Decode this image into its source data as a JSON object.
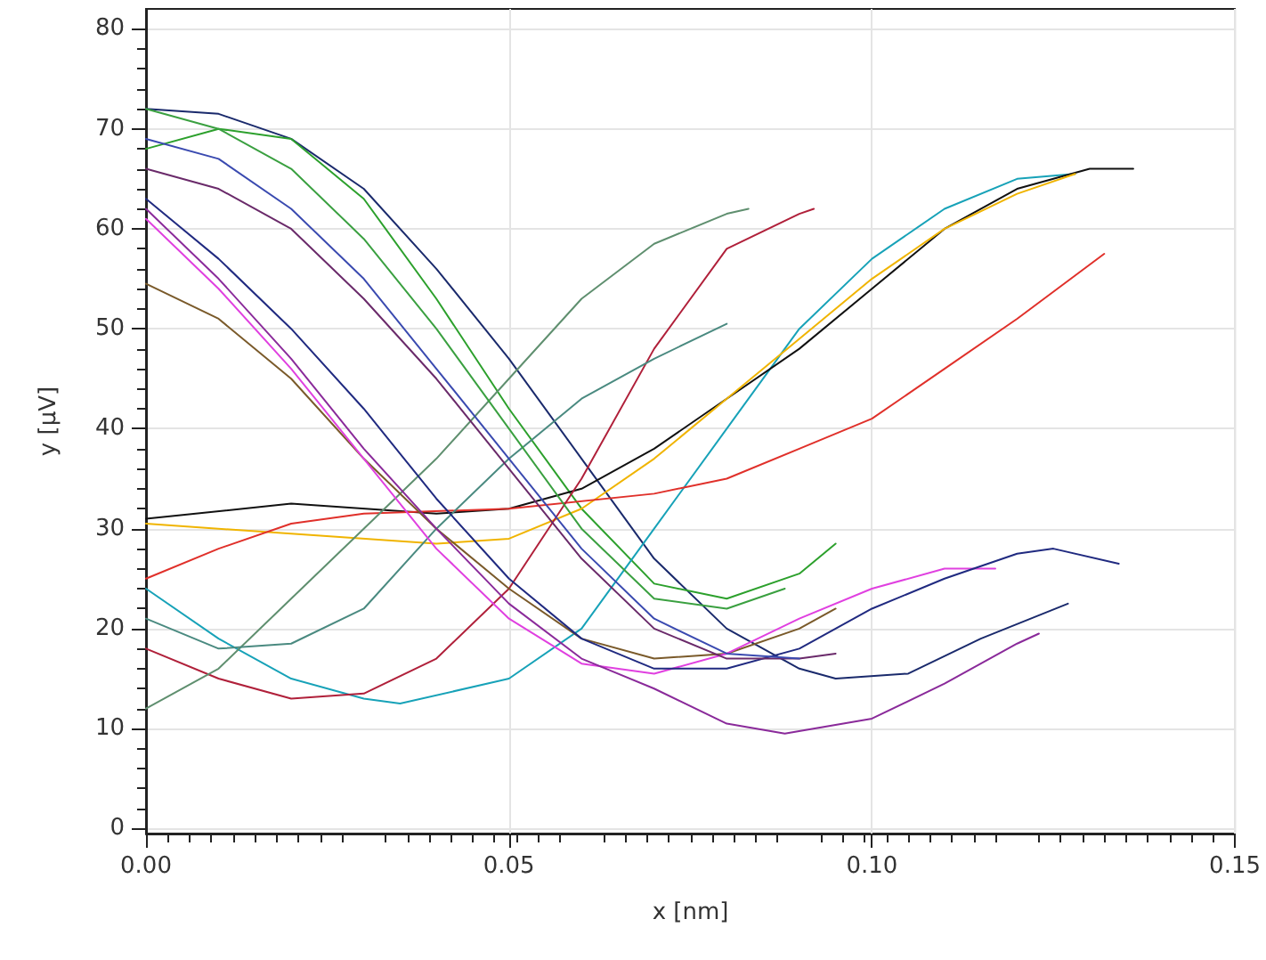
{
  "chart_data": {
    "type": "line",
    "xlabel": "x [nm]",
    "ylabel": "y [µV]",
    "xlim": [
      0,
      0.15
    ],
    "ylim": [
      -0.5,
      82
    ],
    "xticks": [
      {
        "value": 0,
        "label": "0.00"
      },
      {
        "value": 0.05,
        "label": "0.05"
      },
      {
        "value": 0.1,
        "label": "0.10"
      },
      {
        "value": 0.15,
        "label": "0.15"
      }
    ],
    "yticks": [
      0,
      10,
      20,
      30,
      40,
      50,
      60,
      70,
      80
    ],
    "grid": true,
    "marker": "none",
    "line_style": "solid",
    "series": [
      {
        "color": "#1a2a6c",
        "x": [
          0,
          0.01,
          0.02,
          0.03,
          0.04,
          0.05,
          0.06,
          0.07,
          0.08,
          0.09,
          0.095,
          0.105,
          0.115,
          0.127
        ],
        "values": [
          72,
          71.5,
          69,
          64,
          56,
          47,
          37,
          27,
          20,
          16,
          15,
          15.5,
          19,
          22.5
        ]
      },
      {
        "color": "#2ca02c",
        "x": [
          0,
          0.01,
          0.02,
          0.03,
          0.04,
          0.05,
          0.06,
          0.07,
          0.08,
          0.09,
          0.095
        ],
        "values": [
          68,
          70,
          69,
          63,
          53,
          42,
          32,
          24.5,
          23,
          25.5,
          28.5
        ]
      },
      {
        "color": "#17a2b8",
        "x": [
          0,
          0.01,
          0.02,
          0.03,
          0.035,
          0.05,
          0.06,
          0.07,
          0.08,
          0.09,
          0.1,
          0.11,
          0.12,
          0.128
        ],
        "values": [
          24,
          19,
          15,
          13,
          12.5,
          15,
          20,
          30,
          40,
          50,
          57,
          62,
          65,
          65.5
        ]
      },
      {
        "color": "#111111",
        "x": [
          0,
          0.02,
          0.04,
          0.05,
          0.06,
          0.07,
          0.08,
          0.09,
          0.1,
          0.11,
          0.12,
          0.13,
          0.136
        ],
        "values": [
          31,
          32.5,
          31.5,
          32,
          34,
          38,
          43,
          48,
          54,
          60,
          64,
          66,
          66
        ]
      },
      {
        "color": "#f0b400",
        "x": [
          0,
          0.02,
          0.04,
          0.05,
          0.06,
          0.07,
          0.08,
          0.09,
          0.1,
          0.11,
          0.12,
          0.128
        ],
        "values": [
          30.5,
          29.5,
          28.5,
          29,
          32,
          37,
          43,
          49,
          55,
          60,
          63.5,
          65.5
        ]
      },
      {
        "color": "#e0302a",
        "x": [
          0,
          0.01,
          0.02,
          0.03,
          0.05,
          0.07,
          0.08,
          0.09,
          0.1,
          0.11,
          0.12,
          0.132
        ],
        "values": [
          25,
          28,
          30.5,
          31.5,
          32,
          33.5,
          35,
          38,
          41,
          46,
          51,
          57.5
        ]
      },
      {
        "color": "#b0203a",
        "x": [
          0,
          0.01,
          0.02,
          0.03,
          0.04,
          0.05,
          0.06,
          0.07,
          0.08,
          0.09,
          0.092
        ],
        "values": [
          18,
          15,
          13,
          13.5,
          17,
          24,
          35,
          48,
          58,
          61.5,
          62
        ]
      },
      {
        "color": "#5f8f6f",
        "x": [
          0,
          0.01,
          0.02,
          0.03,
          0.04,
          0.05,
          0.06,
          0.07,
          0.08,
          0.083
        ],
        "values": [
          12,
          16,
          23,
          30,
          37,
          45,
          53,
          58.5,
          61.5,
          62
        ]
      },
      {
        "color": "#4a8a80",
        "x": [
          0,
          0.01,
          0.02,
          0.03,
          0.04,
          0.05,
          0.06,
          0.07,
          0.08
        ],
        "values": [
          21,
          18,
          18.5,
          22,
          30,
          37,
          43,
          47,
          50.5
        ]
      },
      {
        "color": "#7a5a2a",
        "x": [
          0,
          0.01,
          0.02,
          0.03,
          0.04,
          0.05,
          0.06,
          0.07,
          0.08,
          0.09,
          0.095
        ],
        "values": [
          54.5,
          51,
          45,
          37,
          30,
          24,
          19,
          17,
          17.5,
          20,
          22
        ]
      },
      {
        "color": "#e040e0",
        "x": [
          0,
          0.01,
          0.02,
          0.03,
          0.04,
          0.05,
          0.06,
          0.07,
          0.08,
          0.09,
          0.1,
          0.11,
          0.117
        ],
        "values": [
          61,
          54,
          46,
          37,
          28,
          21,
          16.5,
          15.5,
          17.5,
          21,
          24,
          26,
          26
        ]
      },
      {
        "color": "#8a2a9a",
        "x": [
          0,
          0.01,
          0.02,
          0.03,
          0.04,
          0.05,
          0.06,
          0.07,
          0.08,
          0.088,
          0.1,
          0.11,
          0.12,
          0.123
        ],
        "values": [
          62,
          55,
          47,
          38,
          30,
          22.5,
          17,
          14,
          10.5,
          9.5,
          11,
          14.5,
          18.5,
          19.5
        ]
      },
      {
        "color": "#202a80",
        "x": [
          0,
          0.01,
          0.02,
          0.03,
          0.04,
          0.05,
          0.06,
          0.07,
          0.08,
          0.09,
          0.1,
          0.11,
          0.12,
          0.125,
          0.134
        ],
        "values": [
          63,
          57,
          50,
          42,
          33,
          25,
          19,
          16,
          16,
          18,
          22,
          25,
          27.5,
          28,
          26.5
        ]
      },
      {
        "color": "#6a2a6a",
        "x": [
          0,
          0.01,
          0.02,
          0.03,
          0.04,
          0.05,
          0.06,
          0.07,
          0.08,
          0.09,
          0.095
        ],
        "values": [
          66,
          64,
          60,
          53,
          45,
          36,
          27,
          20,
          17,
          17,
          17.5
        ]
      },
      {
        "color": "#3a4ab0",
        "x": [
          0,
          0.01,
          0.02,
          0.03,
          0.04,
          0.05,
          0.06,
          0.07,
          0.08,
          0.09
        ],
        "values": [
          69,
          67,
          62,
          55,
          46,
          37,
          28,
          21,
          17.5,
          17
        ]
      },
      {
        "color": "#3aa040",
        "x": [
          0,
          0.01,
          0.02,
          0.03,
          0.04,
          0.05,
          0.06,
          0.07,
          0.08,
          0.088
        ],
        "values": [
          72,
          70,
          66,
          59,
          50,
          40,
          30,
          23,
          22,
          24
        ]
      }
    ]
  }
}
